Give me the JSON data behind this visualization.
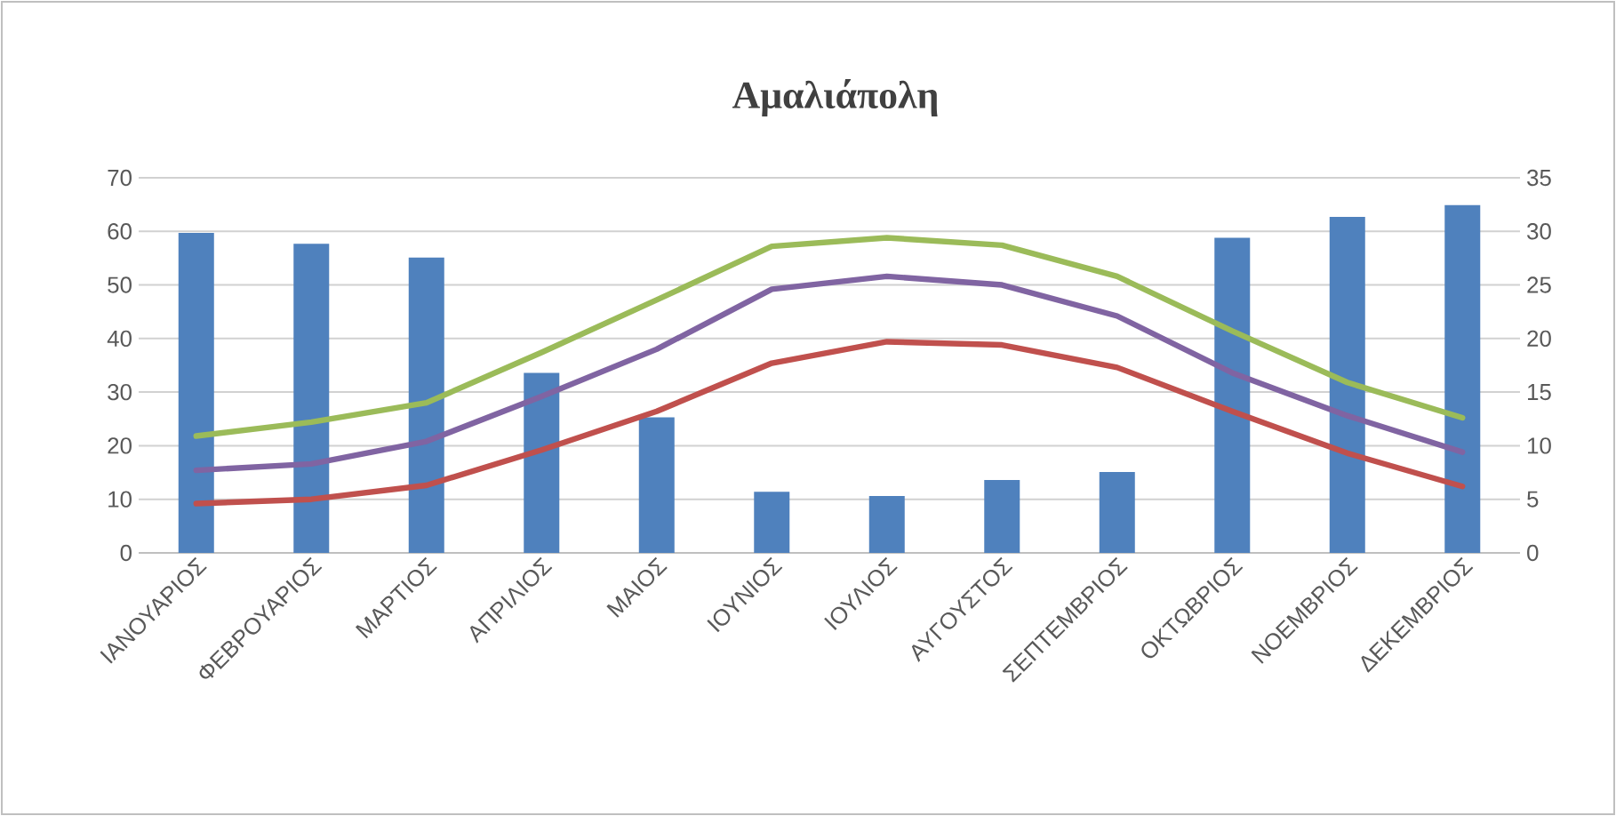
{
  "chart_data": {
    "type": "bar",
    "title": "Αμαλιάπολη",
    "categories": [
      "ΙΑΝΟΥΑΡΙΟΣ",
      "ΦΕΒΡΟΥΑΡΙΟΣ",
      "ΜΑΡΤΙΟΣ",
      "ΑΠΡΙΛΙΟΣ",
      "ΜΑΙΟΣ",
      "ΙΟΥΝΙΟΣ",
      "ΙΟΥΛΙΟΣ",
      "ΑΥΓΟΥΣΤΟΣ",
      "ΣΕΠΤΕΜΒΡΙΟΣ",
      "ΟΚΤΩΒΡΙΟΣ",
      "ΝΟΕΜΒΡΙΟΣ",
      "ΔΕΚΕΜΒΡΙΟΣ"
    ],
    "series": [
      {
        "color": "#4f81bd",
        "values": [
          59.7,
          57.7,
          55.1,
          33.6,
          25.3,
          11.4,
          10.6,
          13.6,
          15.1,
          58.8,
          62.7,
          64.9
        ]
      },
      {
        "type": "line",
        "axis": "y2",
        "color": "#9bbb59",
        "values": [
          10.9,
          12.2,
          14.0,
          18.7,
          23.6,
          28.6,
          29.4,
          28.7,
          25.8,
          20.7,
          15.9,
          12.6
        ]
      },
      {
        "type": "line",
        "axis": "y2",
        "color": "#8064a2",
        "values": [
          7.7,
          8.3,
          10.4,
          14.6,
          19.0,
          24.6,
          25.8,
          25.0,
          22.1,
          16.8,
          12.8,
          9.4
        ]
      },
      {
        "type": "line",
        "axis": "y2",
        "color": "#c0504d",
        "values": [
          4.6,
          5.0,
          6.3,
          9.6,
          13.2,
          17.7,
          19.7,
          19.4,
          17.3,
          13.2,
          9.3,
          6.2
        ]
      }
    ],
    "ylim": [
      0,
      70
    ],
    "yticks": [
      0,
      10,
      20,
      30,
      40,
      50,
      60,
      70
    ],
    "y2lim": [
      0,
      35
    ],
    "y2ticks": [
      0,
      5,
      10,
      15,
      20,
      25,
      30,
      35
    ],
    "grid": "y"
  }
}
